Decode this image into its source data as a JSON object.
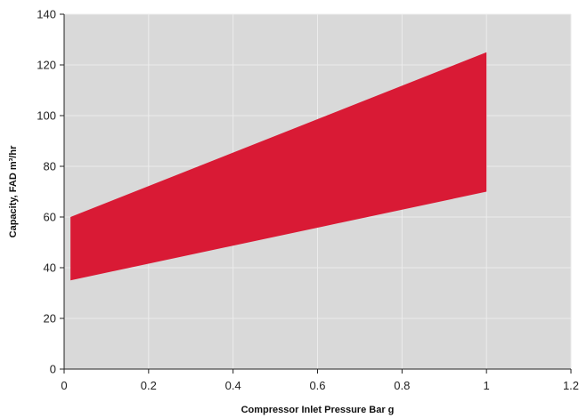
{
  "chart_data": {
    "type": "area",
    "title": "",
    "xlabel": "Compressor Inlet Pressure Bar g",
    "ylabel": "Capacity, FAD m³/hr",
    "xlim": [
      0,
      1.2
    ],
    "ylim": [
      0,
      140
    ],
    "xticks": [
      0,
      0.2,
      0.4,
      0.6,
      0.8,
      1,
      1.2
    ],
    "xtick_labels": [
      "0",
      "0.2",
      "0.4",
      "0.6",
      "0.8",
      "1",
      "1.2"
    ],
    "yticks": [
      0,
      20,
      40,
      60,
      80,
      100,
      120,
      140
    ],
    "ytick_labels": [
      "0",
      "20",
      "40",
      "60",
      "80",
      "100",
      "120",
      "140"
    ],
    "grid": true,
    "background_color": "#d9d9d9",
    "grid_color": "#ececec",
    "band": {
      "fill_color": "#d91a35",
      "x": [
        0.015,
        1
      ],
      "upper": [
        60,
        125
      ],
      "lower": [
        35,
        70
      ]
    }
  }
}
